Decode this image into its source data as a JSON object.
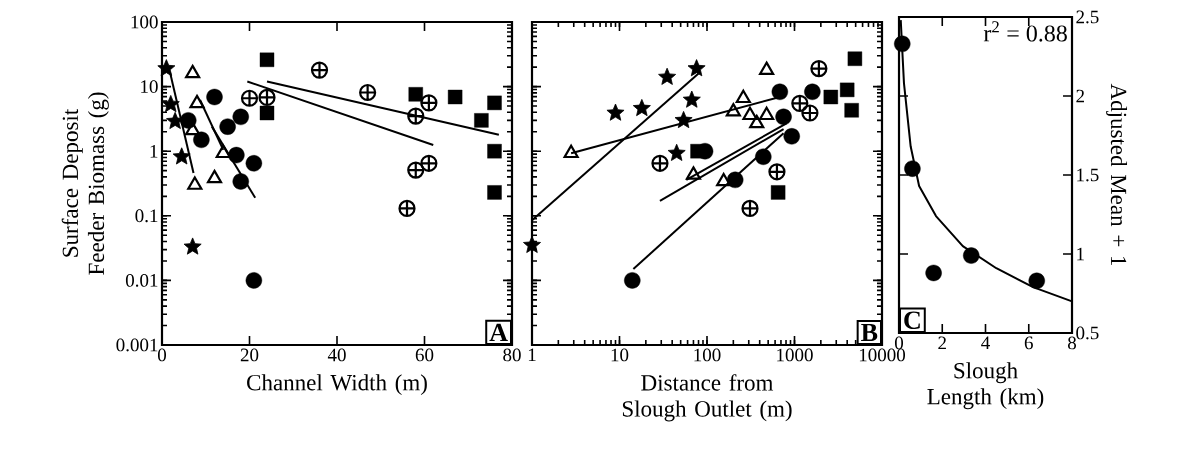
{
  "chart_data": [
    {
      "type": "scatter",
      "xlabel": "Channel Width (m)",
      "ylabel": "Surface Deposit Feeder Biomass (g)",
      "xlim": [
        0,
        80
      ],
      "xticks": [
        0,
        20,
        40,
        60,
        80
      ],
      "ylim": [
        0.001,
        100
      ],
      "yticks": [
        0.001,
        0.01,
        0.1,
        1,
        10,
        100
      ],
      "log": "y",
      "annotations": [
        "A"
      ],
      "series": [
        {
          "marker": "square",
          "color": "#000000",
          "x": [
            24,
            24,
            58,
            67,
            76,
            73,
            76,
            76
          ],
          "values": [
            26,
            3.9,
            7.6,
            6.9,
            5.6,
            3.0,
            1.0,
            0.23
          ]
        },
        {
          "marker": "cross",
          "color": "#000000",
          "x": [
            36,
            20,
            24,
            47,
            61,
            58,
            61,
            58,
            56
          ],
          "values": [
            18,
            6.6,
            6.8,
            8.1,
            5.6,
            3.5,
            0.65,
            0.51,
            0.13
          ]
        },
        {
          "marker": "star",
          "color": "#000000",
          "x": [
            1,
            2,
            3,
            4.5,
            7
          ],
          "values": [
            19,
            5.3,
            2.9,
            0.82,
            0.033
          ]
        },
        {
          "marker": "triangle",
          "color": "#000000",
          "x": [
            7,
            8,
            7,
            14,
            7.5,
            12
          ],
          "values": [
            16,
            5.5,
            2.1,
            0.93,
            0.3,
            0.38
          ]
        },
        {
          "marker": "circle",
          "color": "#000000",
          "x": [
            12,
            18,
            15,
            9,
            6,
            17,
            21,
            18,
            21
          ],
          "values": [
            6.9,
            3.4,
            2.4,
            1.5,
            3.0,
            0.87,
            0.65,
            0.34,
            0.01
          ]
        },
        {
          "type": "line",
          "marker": "none",
          "color": "#000000",
          "x": [
            19.5,
            62
          ],
          "values": [
            12,
            1.25
          ]
        },
        {
          "type": "line",
          "marker": "none",
          "color": "#000000",
          "x": [
            24,
            77
          ],
          "values": [
            12,
            1.8
          ]
        },
        {
          "type": "line",
          "marker": "none",
          "color": "#000000",
          "x": [
            1.8,
            7.2
          ],
          "values": [
            17,
            0.46
          ]
        },
        {
          "type": "line",
          "marker": "none",
          "color": "#000000",
          "x": [
            8.7,
            14
          ],
          "values": [
            6.2,
            1.05
          ]
        },
        {
          "type": "line",
          "marker": "none",
          "color": "#000000",
          "x": [
            11.4,
            21.3
          ],
          "values": [
            2.4,
            0.19
          ]
        }
      ]
    },
    {
      "type": "scatter",
      "xlabel": "Distance from Slough Outlet (m)",
      "xlim": [
        1,
        10000
      ],
      "xticks": [
        1,
        10,
        100,
        1000,
        10000
      ],
      "ylim": [
        0.001,
        100
      ],
      "yticks": [
        0.001,
        0.01,
        0.1,
        1,
        10,
        100
      ],
      "tick_labels": "x",
      "log": "xy",
      "annotations": [
        "B"
      ],
      "series": [
        {
          "marker": "star",
          "color": "#000000",
          "x": [
            1,
            9,
            18,
            35,
            76,
            67,
            54,
            45
          ],
          "values": [
            0.035,
            3.9,
            4.6,
            14,
            19,
            6.2,
            3.0,
            0.93
          ]
        },
        {
          "marker": "triangle",
          "color": "#000000",
          "x": [
            2.8,
            480,
            260,
            200,
            310,
            370,
            480,
            70,
            155
          ],
          "values": [
            0.93,
            18,
            6.6,
            4.1,
            3.6,
            2.7,
            3.6,
            0.43,
            0.34
          ]
        },
        {
          "marker": "circle",
          "color": "#000000",
          "x": [
            680,
            14,
            95,
            440,
            210,
            930,
            1600,
            750
          ],
          "values": [
            8.3,
            0.01,
            1.0,
            0.82,
            0.36,
            1.7,
            8.3,
            3.4
          ]
        },
        {
          "marker": "cross",
          "color": "#000000",
          "x": [
            29,
            1900,
            630,
            310,
            1150,
            1500
          ],
          "values": [
            0.65,
            19,
            0.48,
            0.13,
            5.5,
            3.9
          ]
        },
        {
          "marker": "square",
          "color": "#000000",
          "x": [
            4900,
            78,
            650,
            4000,
            4500,
            2600
          ],
          "values": [
            27,
            1.0,
            0.23,
            8.9,
            4.3,
            6.9
          ]
        },
        {
          "type": "line",
          "marker": "none",
          "color": "#000000",
          "x": [
            1,
            80
          ],
          "values": [
            0.085,
            16
          ]
        },
        {
          "type": "line",
          "marker": "none",
          "color": "#000000",
          "x": [
            2.8,
            680
          ],
          "values": [
            0.93,
            6.9
          ]
        },
        {
          "type": "line",
          "marker": "none",
          "color": "#000000",
          "x": [
            29,
            750
          ],
          "values": [
            0.17,
            2.2
          ]
        },
        {
          "type": "line",
          "marker": "none",
          "color": "#000000",
          "x": [
            14.4,
            750
          ],
          "values": [
            0.015,
            1.9
          ]
        },
        {
          "type": "line",
          "marker": "none",
          "color": "#000000",
          "x": [
            58,
            810
          ],
          "values": [
            0.36,
            2.7
          ]
        }
      ]
    },
    {
      "type": "scatter",
      "xlabel": "Slough Length (km)",
      "y2label": "Adjusted Mean + 1",
      "xlim": [
        0,
        8
      ],
      "xticks": [
        0,
        2,
        4,
        6,
        8
      ],
      "y2lim": [
        0.5,
        2.5
      ],
      "y2ticks": [
        0.5,
        1,
        1.5,
        2,
        2.5
      ],
      "annotations": [
        "r$^{2}$ = 0.88",
        "C"
      ],
      "series": [
        {
          "marker": "circle",
          "axis": "y2",
          "color": "#000000",
          "x": [
            0.15,
            0.62,
            1.6,
            3.34,
            6.37
          ],
          "values": [
            2.33,
            1.54,
            0.88,
            0.99,
            0.83
          ]
        },
        {
          "type": "line",
          "marker": "none",
          "axis": "y2",
          "color": "#000000",
          "x": [
            0.08,
            0.23,
            0.54,
            0.93,
            1.71,
            2.95,
            4.5,
            6.2,
            8
          ],
          "values": [
            2.48,
            2.08,
            1.68,
            1.43,
            1.24,
            1.05,
            0.91,
            0.79,
            0.7
          ]
        }
      ]
    }
  ]
}
